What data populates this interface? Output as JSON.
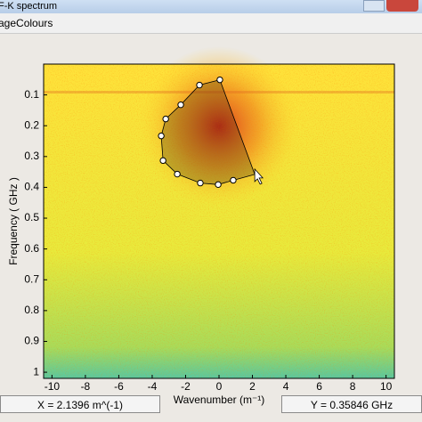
{
  "window": {
    "title": "F-K spectrum",
    "menu": "ageColours"
  },
  "chart_data": {
    "type": "heatmap",
    "xlabel": "Wavenumber (m⁻¹)",
    "ylabel": "Frequency ( GHz )",
    "xlim": [
      -10.5,
      10.5
    ],
    "xticks": [
      -10,
      -8,
      -6,
      -4,
      -2,
      0,
      2,
      4,
      6,
      8,
      10
    ],
    "ylim": [
      0,
      1.02
    ],
    "yticks": [
      0.1,
      0.2,
      0.3,
      0.4,
      0.5,
      0.6,
      0.7,
      0.8,
      0.9,
      1
    ],
    "y_reversed": true,
    "polygon": {
      "color": "#000000",
      "x": [
        0.05,
        -1.17,
        -2.29,
        -3.19,
        -3.46,
        -3.35,
        -2.5,
        -1.12,
        -0.05,
        0.85,
        2.14
      ],
      "y": [
        0.051,
        0.068,
        0.132,
        0.178,
        0.233,
        0.313,
        0.357,
        0.386,
        0.391,
        0.377,
        0.358
      ]
    }
  },
  "status": {
    "x": "X = 2.1396  m^(-1)",
    "y": "Y = 0.35846  GHz"
  }
}
